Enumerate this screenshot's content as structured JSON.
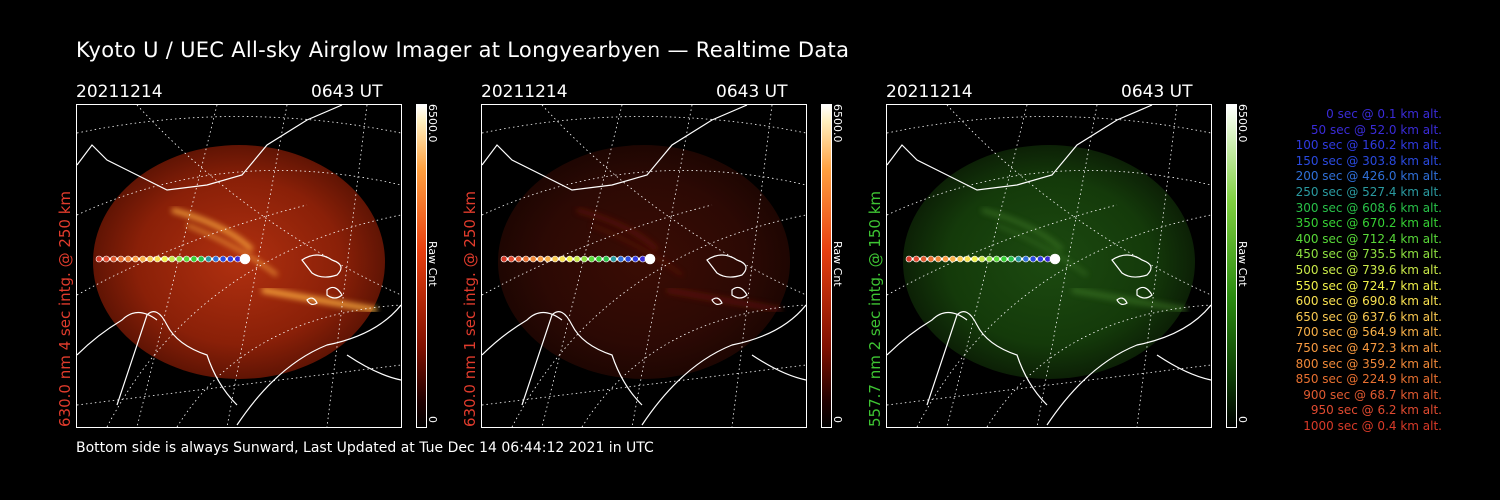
{
  "title": "Kyoto U / UEC All-sky Airglow Imager at Longyearbyen — Realtime Data",
  "footer": "Bottom side is always Sunward, Last Updated at Tue Dec 14 06:44:12 2021 in UTC",
  "panels": [
    {
      "date": "20211214",
      "time": "0643 UT",
      "ylabel": "630.0 nm 4 sec intg. @ 250 km",
      "ylabel_color": "#e03b2c",
      "bar_max": "6500.0",
      "bar_min": "0",
      "bar_unit": "Raw Cnt",
      "colormap": "red",
      "brightness": "bright"
    },
    {
      "date": "20211214",
      "time": "0643 UT",
      "ylabel": "630.0 nm 1 sec intg. @ 250 km",
      "ylabel_color": "#e03b2c",
      "bar_max": "6500.0",
      "bar_min": "0",
      "bar_unit": "Raw Cnt",
      "colormap": "red",
      "brightness": "dim"
    },
    {
      "date": "20211214",
      "time": "0643 UT",
      "ylabel": "557.7 nm 2 sec intg. @ 150 km",
      "ylabel_color": "#3ec433",
      "bar_max": "6500.0",
      "bar_min": "0",
      "bar_unit": "Raw Cnt",
      "colormap": "green",
      "brightness": "dim"
    }
  ],
  "legend": [
    {
      "text": "0 sec @   0.1 km alt.",
      "color": "#3a2bd8"
    },
    {
      "text": "50 sec @  52.0 km alt.",
      "color": "#3a2bd8"
    },
    {
      "text": "100 sec @ 160.2 km alt.",
      "color": "#2f3ae0"
    },
    {
      "text": "150 sec @ 303.8 km alt.",
      "color": "#2a4ae0"
    },
    {
      "text": "200 sec @ 426.0 km alt.",
      "color": "#2f6fd8"
    },
    {
      "text": "250 sec @ 527.4 km alt.",
      "color": "#2a9aa0"
    },
    {
      "text": "300 sec @ 608.6 km alt.",
      "color": "#28c048"
    },
    {
      "text": "350 sec @ 670.2 km alt.",
      "color": "#36d034"
    },
    {
      "text": "400 sec @ 712.4 km alt.",
      "color": "#58d838"
    },
    {
      "text": "450 sec @ 735.5 km alt.",
      "color": "#8ee040"
    },
    {
      "text": "500 sec @ 739.6 km alt.",
      "color": "#c8e848"
    },
    {
      "text": "550 sec @ 724.7 km alt.",
      "color": "#f0f048"
    },
    {
      "text": "600 sec @ 690.8 km alt.",
      "color": "#f8e050"
    },
    {
      "text": "650 sec @ 637.6 km alt.",
      "color": "#f8c850"
    },
    {
      "text": "700 sec @ 564.9 km alt.",
      "color": "#f8b048"
    },
    {
      "text": "750 sec @ 472.3 km alt.",
      "color": "#f89a40"
    },
    {
      "text": "800 sec @ 359.2 km alt.",
      "color": "#f08838"
    },
    {
      "text": "850 sec @ 224.9 km alt.",
      "color": "#e87030"
    },
    {
      "text": "900 sec @  68.7 km alt.",
      "color": "#e05a30"
    },
    {
      "text": "950 sec @   6.2 km alt.",
      "color": "#e04a30"
    },
    {
      "text": "1000 sec @   0.4 km alt.",
      "color": "#d83a28"
    }
  ]
}
